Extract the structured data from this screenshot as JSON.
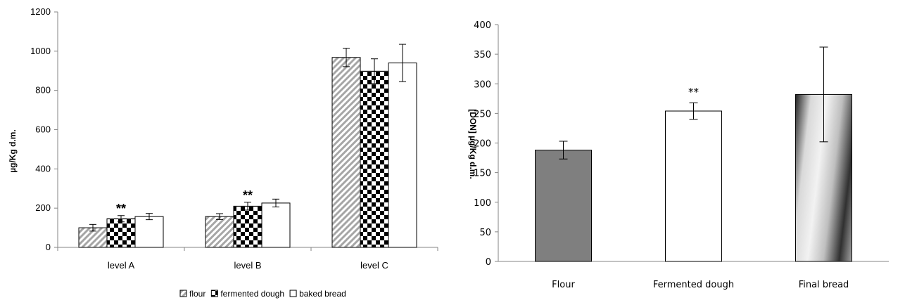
{
  "chart_data": [
    {
      "type": "bar",
      "ylabel": "µg/Kg d.m.",
      "ylim": [
        0,
        1200
      ],
      "yticks": [
        0,
        200,
        400,
        600,
        800,
        1000,
        1200
      ],
      "categories": [
        "level A",
        "level B",
        "level C"
      ],
      "series": [
        {
          "name": "flour",
          "values": [
            100,
            157,
            968
          ],
          "errors": [
            17,
            15,
            47
          ],
          "fill": "diagonal-hatch"
        },
        {
          "name": "fermented dough",
          "values": [
            146,
            210,
            898
          ],
          "errors": [
            16,
            20,
            63
          ],
          "fill": "checkerboard"
        },
        {
          "name": "baked bread",
          "values": [
            157,
            226,
            940
          ],
          "errors": [
            16,
            20,
            95
          ],
          "fill": "white"
        }
      ],
      "annotations": [
        {
          "category": "level A",
          "series": "fermented dough",
          "text": "**"
        },
        {
          "category": "level B",
          "series": "fermented dough",
          "text": "**"
        }
      ],
      "legend": {
        "position": "bottom"
      },
      "grid": false
    },
    {
      "type": "bar",
      "ylabel": "[DON] µg/Kg d.m.",
      "ylim": [
        0,
        400
      ],
      "yticks": [
        0,
        50,
        100,
        150,
        200,
        250,
        300,
        350,
        400
      ],
      "categories": [
        "Flour",
        "Fermented dough",
        "Final bread"
      ],
      "values": [
        188,
        254,
        282
      ],
      "errors": [
        15,
        14,
        80
      ],
      "fills": [
        "#7f7f7f",
        "#ffffff",
        "gradient"
      ],
      "annotations": [
        {
          "category": "Fermented dough",
          "text": "**"
        }
      ],
      "grid": false
    }
  ]
}
